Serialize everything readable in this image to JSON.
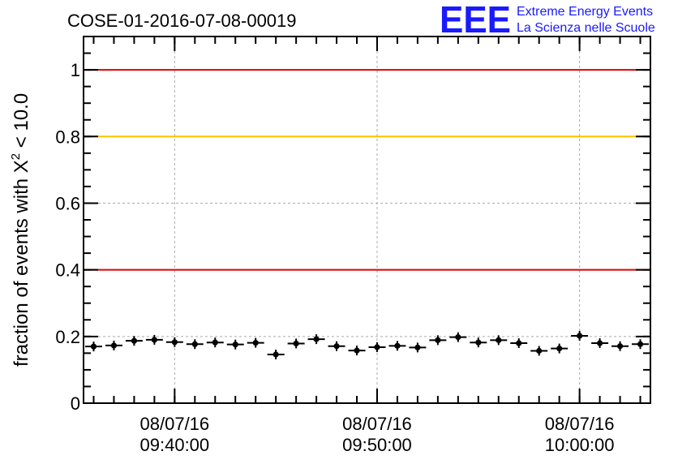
{
  "header": {
    "title": "COSE-01-2016-07-08-00019",
    "logo_mark": "EEE",
    "logo_line1": "Extreme Energy Events",
    "logo_line2": "La Scienza nelle Scuole"
  },
  "colors": {
    "logo": "#1a1aff",
    "red_line": "#e00000",
    "yellow_line": "#ffc000",
    "grid": "#aaaaaa",
    "marker": "#000000"
  },
  "chart_data": {
    "type": "scatter",
    "title": "COSE-01-2016-07-08-00019",
    "ylabel": "fraction of events with X",
    "ylabel_sup": "2",
    "ylabel_tail": " < 10.0",
    "xlabel": "",
    "ylim": [
      0,
      1.1
    ],
    "y_ticks": [
      {
        "value": 0,
        "label": "0"
      },
      {
        "value": 0.2,
        "label": "0.2"
      },
      {
        "value": 0.4,
        "label": "0.4"
      },
      {
        "value": 0.6,
        "label": "0.6"
      },
      {
        "value": 0.8,
        "label": "0.8"
      },
      {
        "value": 1.0,
        "label": "1"
      }
    ],
    "xlim": [
      "09:35:30",
      "10:03:30"
    ],
    "x_ticks": [
      {
        "time": "09:40:00",
        "date_label": "08/07/16",
        "time_label": "09:40:00"
      },
      {
        "time": "09:50:00",
        "date_label": "08/07/16",
        "time_label": "09:50:00"
      },
      {
        "time": "10:00:00",
        "date_label": "08/07/16",
        "time_label": "10:00:00"
      }
    ],
    "x_minor_step_seconds": 60,
    "grid": true,
    "reference_lines": [
      {
        "y": 1.0,
        "color": "#e00000"
      },
      {
        "y": 0.8,
        "color": "#ffc000"
      },
      {
        "y": 0.4,
        "color": "#e00000"
      }
    ],
    "bin_width_seconds": 60,
    "series": [
      {
        "x": [
          "09:36:00",
          "09:37:00",
          "09:38:00",
          "09:39:00",
          "09:40:00",
          "09:41:00",
          "09:42:00",
          "09:43:00",
          "09:44:00",
          "09:45:00",
          "09:46:00",
          "09:47:00",
          "09:48:00",
          "09:49:00",
          "09:50:00",
          "09:51:00",
          "09:52:00",
          "09:53:00",
          "09:54:00",
          "09:55:00",
          "09:56:00",
          "09:57:00",
          "09:58:00",
          "09:59:00",
          "10:00:00",
          "10:01:00",
          "10:02:00",
          "10:03:00"
        ],
        "values": [
          0.17,
          0.173,
          0.187,
          0.19,
          0.183,
          0.177,
          0.182,
          0.176,
          0.181,
          0.146,
          0.179,
          0.192,
          0.171,
          0.158,
          0.168,
          0.172,
          0.167,
          0.189,
          0.198,
          0.182,
          0.189,
          0.18,
          0.157,
          0.164,
          0.202,
          0.18,
          0.171,
          0.177
        ]
      }
    ]
  }
}
